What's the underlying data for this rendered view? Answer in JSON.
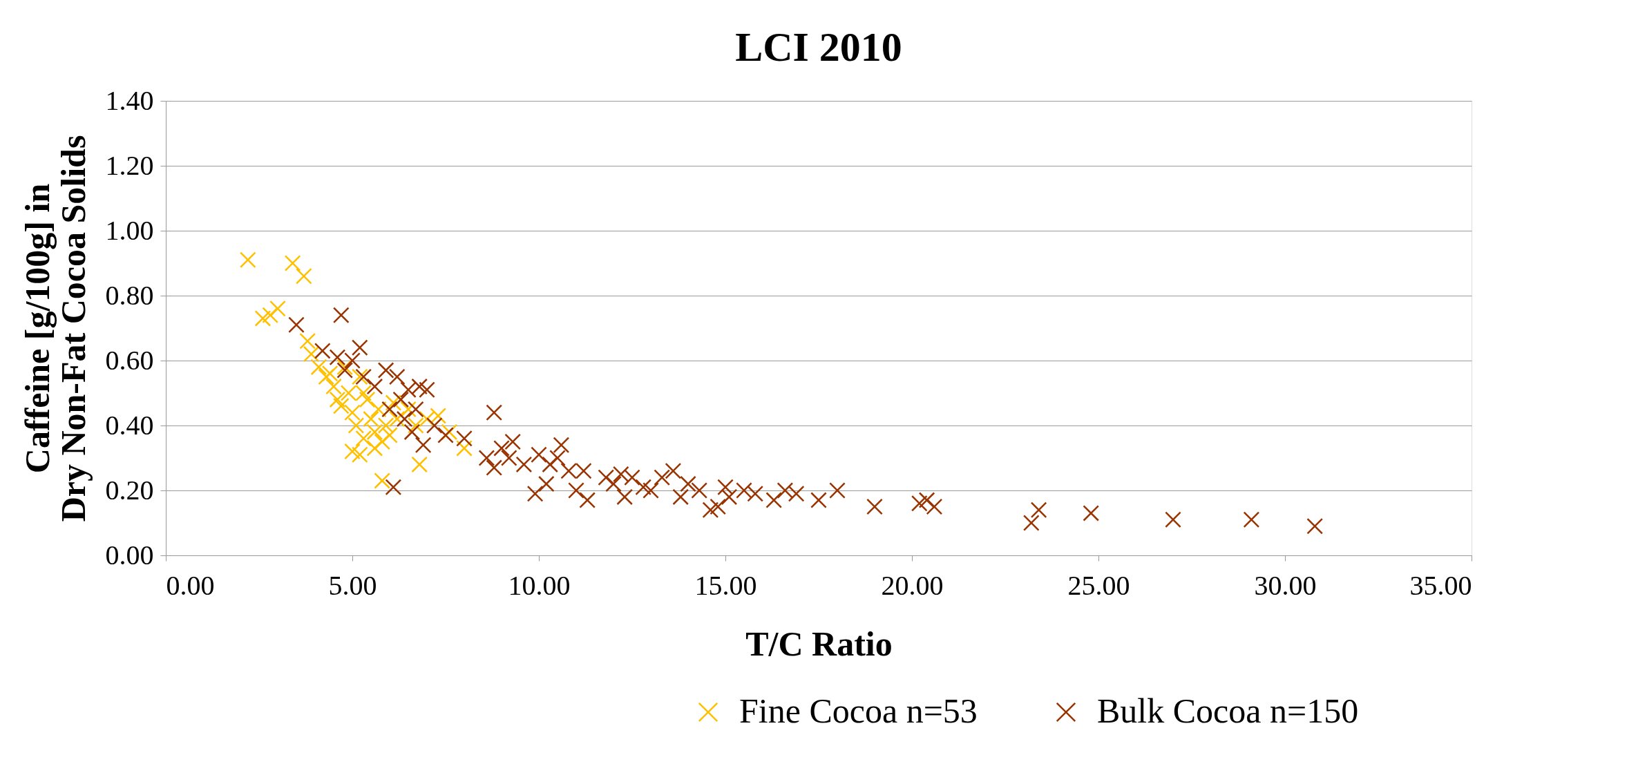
{
  "chart_data": {
    "type": "scatter",
    "title": "LCI 2010",
    "xlabel": "T/C Ratio",
    "ylabel": "Caffeine [g/100g] in\nDry Non-Fat Cocoa Solids",
    "xlim": [
      0,
      35
    ],
    "ylim": [
      0,
      1.4
    ],
    "xticks": [
      {
        "value": 0,
        "label": "0.00"
      },
      {
        "value": 5,
        "label": "5.00"
      },
      {
        "value": 10,
        "label": "10.00"
      },
      {
        "value": 15,
        "label": "15.00"
      },
      {
        "value": 20,
        "label": "20.00"
      },
      {
        "value": 25,
        "label": "25.00"
      },
      {
        "value": 30,
        "label": "30.00"
      },
      {
        "value": 35,
        "label": "35.00"
      }
    ],
    "yticks": [
      {
        "value": 0,
        "label": "0.00"
      },
      {
        "value": 0.2,
        "label": "0.20"
      },
      {
        "value": 0.4,
        "label": "0.40"
      },
      {
        "value": 0.6,
        "label": "0.60"
      },
      {
        "value": 0.8,
        "label": "0.80"
      },
      {
        "value": 1.0,
        "label": "1.00"
      },
      {
        "value": 1.2,
        "label": "1.20"
      },
      {
        "value": 1.4,
        "label": "1.40"
      }
    ],
    "grid": "y",
    "legend": "bottom right",
    "marker": "cross",
    "series": [
      {
        "name": "Fine Cocoa  n=53",
        "color": "#ffc000",
        "x": [
          2.2,
          3.4,
          3.7,
          2.6,
          2.8,
          3.0,
          3.8,
          3.9,
          4.1,
          4.3,
          4.5,
          4.6,
          4.7,
          4.8,
          4.9,
          5.0,
          5.0,
          5.1,
          5.2,
          5.3,
          5.4,
          5.5,
          5.6,
          5.6,
          5.7,
          5.8,
          5.8,
          5.9,
          6.0,
          6.1,
          6.2,
          6.5,
          6.7,
          6.8,
          7.0,
          7.3,
          7.6,
          8.0,
          5.2,
          4.4,
          5.3
        ],
        "values": [
          0.91,
          0.9,
          0.86,
          0.73,
          0.74,
          0.76,
          0.66,
          0.62,
          0.58,
          0.55,
          0.52,
          0.48,
          0.46,
          0.58,
          0.5,
          0.44,
          0.32,
          0.4,
          0.55,
          0.36,
          0.48,
          0.42,
          0.33,
          0.38,
          0.45,
          0.23,
          0.35,
          0.4,
          0.37,
          0.47,
          0.42,
          0.45,
          0.4,
          0.28,
          0.42,
          0.43,
          0.38,
          0.33,
          0.31,
          0.56,
          0.5
        ]
      },
      {
        "name": "Bulk Cocoa  n=150",
        "color": "#993300",
        "x": [
          3.5,
          4.2,
          4.7,
          4.6,
          4.8,
          5.0,
          5.2,
          5.3,
          5.6,
          5.9,
          6.0,
          6.1,
          6.2,
          6.3,
          6.4,
          6.5,
          6.6,
          6.7,
          6.8,
          6.9,
          7.0,
          7.2,
          7.5,
          8.0,
          8.6,
          8.8,
          8.8,
          9.0,
          9.2,
          9.3,
          9.6,
          9.9,
          10.0,
          10.2,
          10.3,
          10.5,
          10.6,
          10.8,
          11.0,
          11.2,
          11.3,
          11.8,
          12.0,
          12.2,
          12.3,
          12.5,
          12.8,
          13.0,
          13.3,
          13.6,
          13.8,
          14.0,
          14.3,
          14.6,
          14.8,
          15.0,
          15.1,
          15.5,
          15.8,
          16.3,
          16.6,
          16.9,
          17.5,
          18.0,
          19.0,
          20.2,
          20.4,
          20.6,
          23.2,
          23.4,
          24.8,
          27.0,
          29.1,
          30.8
        ],
        "values": [
          0.71,
          0.63,
          0.74,
          0.61,
          0.57,
          0.6,
          0.64,
          0.55,
          0.52,
          0.57,
          0.45,
          0.21,
          0.55,
          0.48,
          0.42,
          0.51,
          0.38,
          0.45,
          0.52,
          0.34,
          0.51,
          0.4,
          0.37,
          0.36,
          0.3,
          0.44,
          0.27,
          0.33,
          0.3,
          0.35,
          0.28,
          0.19,
          0.31,
          0.22,
          0.28,
          0.3,
          0.34,
          0.26,
          0.2,
          0.26,
          0.17,
          0.24,
          0.22,
          0.25,
          0.18,
          0.24,
          0.21,
          0.2,
          0.24,
          0.26,
          0.18,
          0.22,
          0.2,
          0.14,
          0.15,
          0.21,
          0.18,
          0.2,
          0.19,
          0.17,
          0.2,
          0.19,
          0.17,
          0.2,
          0.15,
          0.16,
          0.17,
          0.15,
          0.1,
          0.14,
          0.13,
          0.11,
          0.11,
          0.09
        ]
      }
    ]
  }
}
